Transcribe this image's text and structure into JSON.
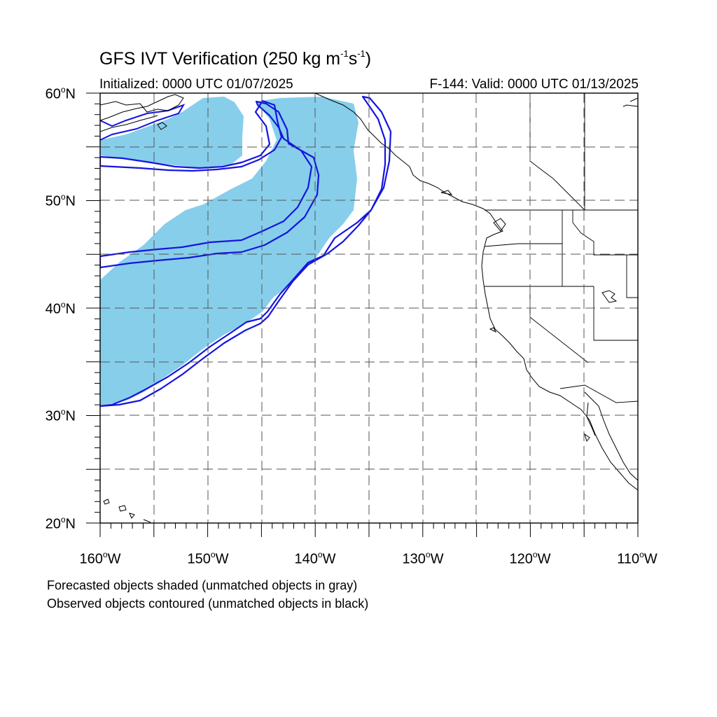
{
  "title": {
    "prefix": "GFS IVT Verification (250 kg m",
    "exp1": "-1",
    "mid": "s",
    "exp2": "-1",
    "suffix": ")"
  },
  "initialized": "Initialized: 0000 UTC 01/07/2025",
  "valid": "F-144: Valid: 0000 UTC 01/13/2025",
  "lat_labels": [
    {
      "num": "60",
      "deg": "o",
      "dir": "N"
    },
    {
      "num": "50",
      "deg": "o",
      "dir": "N"
    },
    {
      "num": "40",
      "deg": "o",
      "dir": "N"
    },
    {
      "num": "30",
      "deg": "o",
      "dir": "N"
    },
    {
      "num": "20",
      "deg": "o",
      "dir": "N"
    }
  ],
  "lon_labels": [
    {
      "num": "160",
      "deg": "o",
      "dir": "W"
    },
    {
      "num": "150",
      "deg": "o",
      "dir": "W"
    },
    {
      "num": "140",
      "deg": "o",
      "dir": "W"
    },
    {
      "num": "130",
      "deg": "o",
      "dir": "W"
    },
    {
      "num": "120",
      "deg": "o",
      "dir": "W"
    },
    {
      "num": "110",
      "deg": "o",
      "dir": "W"
    }
  ],
  "notes": {
    "shaded": "Forecasted objects shaded (unmatched objects in gray)",
    "contoured": "Observed objects contoured (unmatched objects in black)"
  },
  "colors": {
    "forecast_fill": "#87ceeb",
    "observed_contour": "#1515e0",
    "coastline": "#000000",
    "grid": "#555555"
  },
  "map": {
    "lon_range": [
      -160,
      -110
    ],
    "lat_range": [
      20,
      60
    ],
    "grid_spacing_deg": 5,
    "minor_tick_deg": 1
  }
}
